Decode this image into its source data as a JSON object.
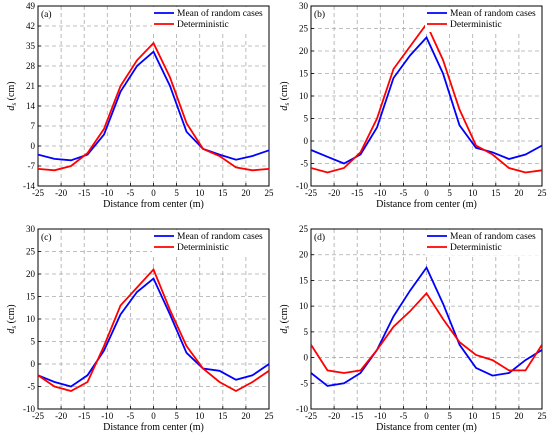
{
  "chart_data": [
    {
      "type": "line",
      "panel_label": "(a)",
      "xlabel": "Distance from center (m)",
      "ylabel": "d_s (cm)",
      "ylabel_main": "d",
      "ylabel_sub": "s",
      "ylabel_unit": " (cm)",
      "xlim": [
        -25,
        25
      ],
      "ylim": [
        -14,
        49
      ],
      "xticks": [
        -25,
        -20,
        -15,
        -10,
        -5,
        0,
        5,
        10,
        15,
        20,
        25
      ],
      "yticks": [
        -14,
        -7,
        0,
        7,
        14,
        21,
        28,
        35,
        42,
        49
      ],
      "x": [
        -25,
        -21.43,
        -17.86,
        -14.29,
        -10.71,
        -7.14,
        -3.57,
        0,
        3.57,
        7.14,
        10.71,
        14.29,
        17.86,
        21.43,
        25
      ],
      "series": [
        {
          "name": "Mean of random cases",
          "color": "#0000ff",
          "values": [
            -3,
            -4.5,
            -5,
            -3,
            4,
            19,
            28,
            33,
            21,
            5,
            -1,
            -3,
            -4.8,
            -3.5,
            -1.5
          ]
        },
        {
          "name": "Deterministic",
          "color": "#ff0000",
          "values": [
            -8,
            -8.5,
            -7,
            -2.5,
            6,
            21,
            30,
            36,
            24,
            8,
            -1,
            -3.5,
            -7.5,
            -8.5,
            -8
          ]
        }
      ],
      "legend_position": "top-right",
      "grid": true
    },
    {
      "type": "line",
      "panel_label": "(b)",
      "xlabel": "Distance from center (m)",
      "ylabel": "d_s (cm)",
      "ylabel_main": "d",
      "ylabel_sub": "s",
      "ylabel_unit": " (cm)",
      "xlim": [
        -25,
        25
      ],
      "ylim": [
        -10,
        30
      ],
      "xticks": [
        -25,
        -20,
        -15,
        -10,
        -5,
        0,
        5,
        10,
        15,
        20,
        25
      ],
      "yticks": [
        -10,
        -5,
        0,
        5,
        10,
        15,
        20,
        25,
        30
      ],
      "x": [
        -25,
        -21.43,
        -17.86,
        -14.29,
        -10.71,
        -7.14,
        -3.57,
        0,
        3.57,
        7.14,
        10.71,
        14.29,
        17.86,
        21.43,
        25
      ],
      "series": [
        {
          "name": "Mean of random cases",
          "color": "#0000ff",
          "values": [
            -2,
            -3.5,
            -5,
            -3,
            3,
            14,
            19,
            23,
            15,
            3.5,
            -1.5,
            -2.5,
            -4,
            -3,
            -1
          ]
        },
        {
          "name": "Deterministic",
          "color": "#ff0000",
          "values": [
            -6,
            -7,
            -6,
            -2.5,
            5,
            16,
            21,
            26,
            18,
            7,
            -1,
            -3,
            -6,
            -7,
            -6.5
          ]
        }
      ],
      "legend_position": "top-right",
      "grid": true
    },
    {
      "type": "line",
      "panel_label": "(c)",
      "xlabel": "Distance from center (m)",
      "ylabel": "d_s (cm)",
      "ylabel_main": "d",
      "ylabel_sub": "s",
      "ylabel_unit": " (cm)",
      "xlim": [
        -25,
        25
      ],
      "ylim": [
        -10,
        30
      ],
      "xticks": [
        -25,
        -20,
        -15,
        -10,
        -5,
        0,
        5,
        10,
        15,
        20,
        25
      ],
      "yticks": [
        -10,
        -5,
        0,
        5,
        10,
        15,
        20,
        25,
        30
      ],
      "x": [
        -25,
        -21.43,
        -17.86,
        -14.29,
        -10.71,
        -7.14,
        -3.57,
        0,
        3.57,
        7.14,
        10.71,
        14.29,
        17.86,
        21.43,
        25
      ],
      "series": [
        {
          "name": "Mean of random cases",
          "color": "#0000ff",
          "values": [
            -2.5,
            -4,
            -5,
            -2.5,
            3,
            11,
            16,
            19,
            11,
            2.5,
            -1,
            -1.5,
            -3.5,
            -2.5,
            0
          ]
        },
        {
          "name": "Deterministic",
          "color": "#ff0000",
          "values": [
            -2.5,
            -5,
            -6,
            -4,
            4,
            13,
            17,
            21,
            12,
            4,
            -1,
            -4,
            -6,
            -4,
            -1.5
          ]
        }
      ],
      "legend_position": "top-right",
      "grid": true
    },
    {
      "type": "line",
      "panel_label": "(d)",
      "xlabel": "Distance from center (m)",
      "ylabel": "d_s (cm)",
      "ylabel_main": "d",
      "ylabel_sub": "s",
      "ylabel_unit": " (cm)",
      "xlim": [
        -25,
        25
      ],
      "ylim": [
        -10,
        25
      ],
      "xticks": [
        -25,
        -20,
        -15,
        -10,
        -5,
        0,
        5,
        10,
        15,
        20,
        25
      ],
      "yticks": [
        -10,
        -5,
        0,
        5,
        10,
        15,
        20,
        25
      ],
      "x": [
        -25,
        -21.43,
        -17.86,
        -14.29,
        -10.71,
        -7.14,
        -3.57,
        0,
        3.57,
        7.14,
        10.71,
        14.29,
        17.86,
        21.43,
        25
      ],
      "series": [
        {
          "name": "Mean of random cases",
          "color": "#0000ff",
          "values": [
            -3,
            -5.5,
            -5,
            -3,
            1.5,
            8,
            13,
            17.5,
            10.5,
            2.5,
            -2,
            -3.5,
            -3,
            -0.5,
            1.5
          ]
        },
        {
          "name": "Deterministic",
          "color": "#ff0000",
          "values": [
            2.5,
            -2.5,
            -3,
            -2.5,
            1.5,
            6,
            9,
            12.5,
            7.5,
            3,
            0.5,
            -0.5,
            -2.5,
            -2.5,
            2.5
          ]
        }
      ],
      "legend_position": "top-right",
      "grid": true
    }
  ]
}
